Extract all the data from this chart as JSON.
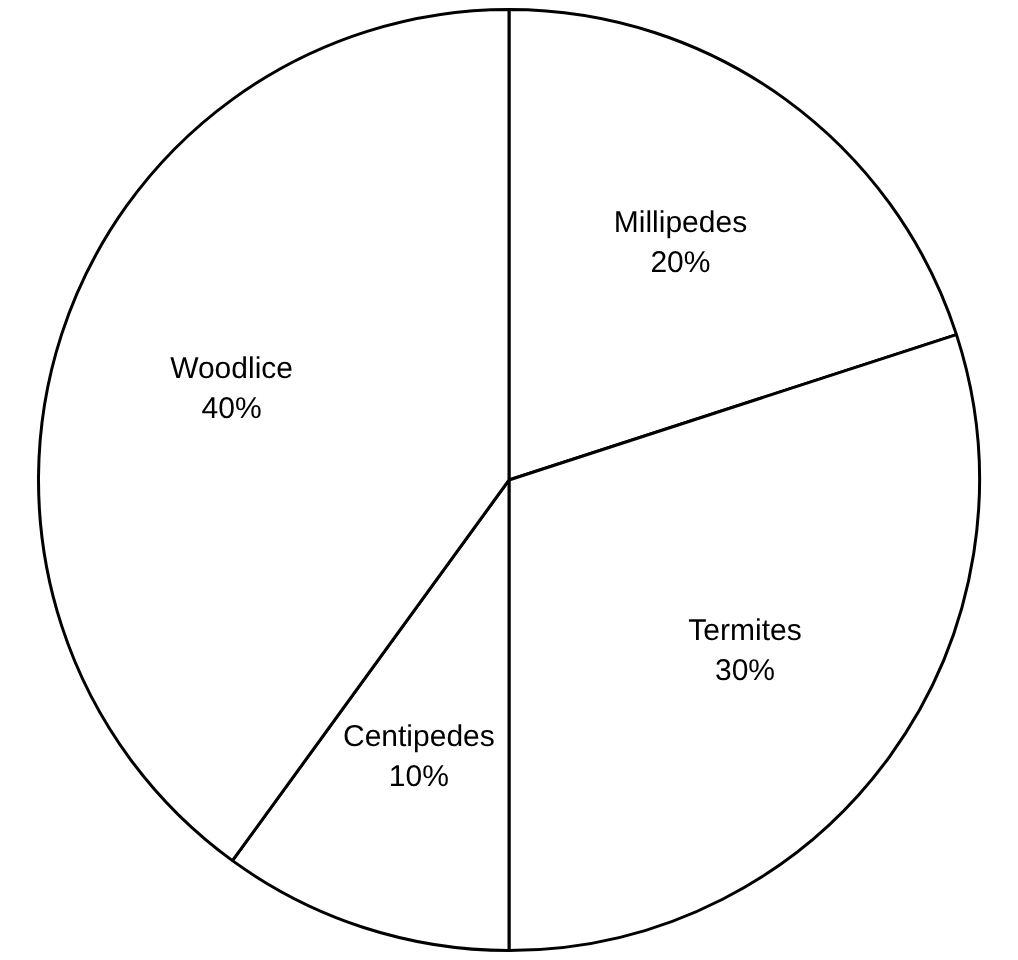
{
  "chart_data": {
    "type": "pie",
    "categories": [
      "Millipedes",
      "Termites",
      "Centipedes",
      "Woodlice"
    ],
    "values": [
      20,
      30,
      10,
      40
    ],
    "colors": [
      "#ffffff",
      "#ffffff",
      "#ffffff",
      "#ffffff"
    ],
    "value_labels": [
      "20%",
      "30%",
      "10%",
      "40%"
    ],
    "legend": false
  }
}
